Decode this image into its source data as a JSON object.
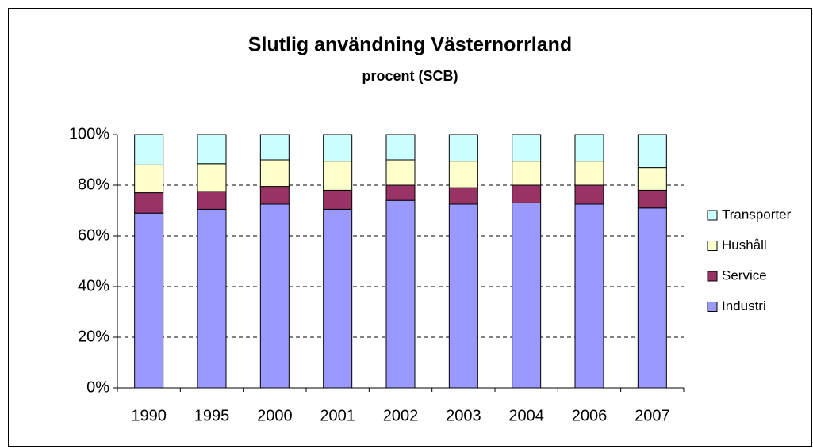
{
  "chart_data": {
    "type": "stacked_bar",
    "title": "Slutlig användning Västernorrland",
    "subtitle": "procent (SCB)",
    "categories": [
      "1990",
      "1995",
      "2000",
      "2001",
      "2002",
      "2003",
      "2004",
      "2006",
      "2007"
    ],
    "series": [
      {
        "name": "Industri",
        "color": "#9999ff",
        "values": [
          69,
          70.5,
          72.5,
          70.5,
          74,
          72.5,
          73,
          72.5,
          71
        ]
      },
      {
        "name": "Service",
        "color": "#993366",
        "values": [
          8,
          7,
          7,
          7.5,
          6,
          6.5,
          7,
          7.5,
          7
        ]
      },
      {
        "name": "Hushåll",
        "color": "#ffffcc",
        "values": [
          11,
          11,
          10.5,
          11.5,
          10,
          10.5,
          9.5,
          9.5,
          9
        ]
      },
      {
        "name": "Transporter",
        "color": "#ccffff",
        "values": [
          12,
          11.5,
          10,
          10.5,
          10,
          10.5,
          10.5,
          10.5,
          13
        ]
      }
    ],
    "ylim": [
      0,
      100
    ],
    "yticks": [
      {
        "value": 0,
        "label": "0%"
      },
      {
        "value": 20,
        "label": "20%"
      },
      {
        "value": 40,
        "label": "40%"
      },
      {
        "value": 60,
        "label": "60%"
      },
      {
        "value": 80,
        "label": "80%"
      },
      {
        "value": 100,
        "label": "100%"
      }
    ],
    "grid": true,
    "legend": "right"
  }
}
